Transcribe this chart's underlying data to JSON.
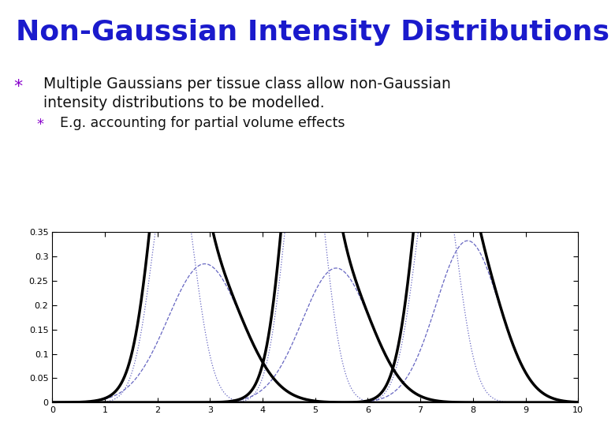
{
  "title": "Non-Gaussian Intensity Distributions",
  "title_color": "#1a1acc",
  "bg_color": "#ffffff",
  "star_color": "#8800cc",
  "bullet1_line1": "Multiple Gaussians per tissue class allow non-Gaussian",
  "bullet1_line2": "intensity distributions to be modelled.",
  "bullet2": "E.g. accounting for partial volume effects",
  "text_color": "#111111",
  "xmin": 0,
  "xmax": 10,
  "ymin": 0,
  "ymax": 0.35,
  "yticks": [
    0,
    0.05,
    0.1,
    0.15,
    0.2,
    0.25,
    0.3,
    0.35
  ],
  "xticks": [
    0,
    1,
    2,
    3,
    4,
    5,
    6,
    7,
    8,
    9,
    10
  ],
  "components": [
    {
      "mu": 2.3,
      "sigma": 0.38,
      "weight": 0.5,
      "style": "dotted",
      "color": "#5555bb",
      "lw": 0.9
    },
    {
      "mu": 2.9,
      "sigma": 0.7,
      "weight": 0.5,
      "style": "dashed",
      "color": "#5555bb",
      "lw": 0.9
    },
    {
      "mu": 4.8,
      "sigma": 0.36,
      "weight": 0.55,
      "style": "dotted",
      "color": "#5555bb",
      "lw": 0.9
    },
    {
      "mu": 5.4,
      "sigma": 0.65,
      "weight": 0.45,
      "style": "dashed",
      "color": "#5555bb",
      "lw": 0.9
    },
    {
      "mu": 7.3,
      "sigma": 0.38,
      "weight": 0.5,
      "style": "dotted",
      "color": "#5555bb",
      "lw": 0.9
    },
    {
      "mu": 7.9,
      "sigma": 0.6,
      "weight": 0.5,
      "style": "dashed",
      "color": "#5555bb",
      "lw": 0.9
    }
  ],
  "mixtures": [
    {
      "components": [
        0,
        1
      ]
    },
    {
      "components": [
        2,
        3
      ]
    },
    {
      "components": [
        4,
        5
      ]
    }
  ],
  "thick_lw": 2.5
}
